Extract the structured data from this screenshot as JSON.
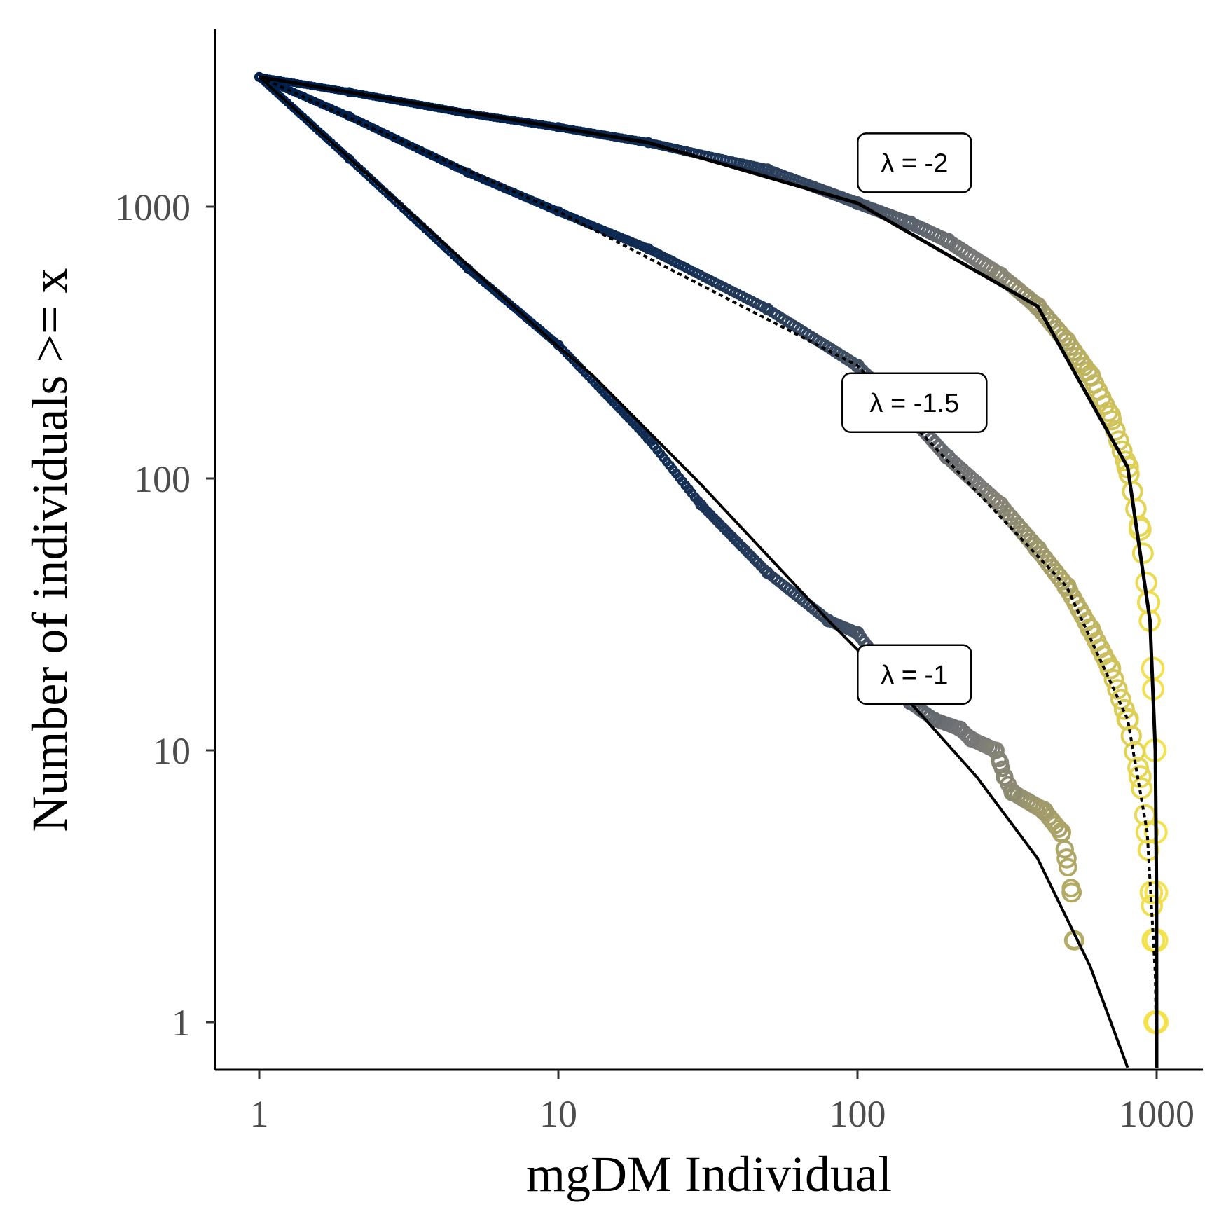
{
  "chart_data": {
    "type": "scatter",
    "xlabel": "mgDM Individual",
    "ylabel": "Number of individuals >= x",
    "x_scale": "log",
    "y_scale": "log",
    "xlim": [
      0.8,
      1370
    ],
    "ylim": [
      0.68,
      3700
    ],
    "grid": false,
    "x_ticks": [
      1,
      10,
      100,
      1000
    ],
    "x_tick_labels": [
      "1",
      "10",
      "100",
      "1000"
    ],
    "y_ticks": [
      1,
      10,
      100,
      1000
    ],
    "y_tick_labels": [
      "1",
      "10",
      "100",
      "1000"
    ],
    "color_scale": {
      "low": "#00204d",
      "mid": "#7c7b78",
      "high": "#f5e34d"
    },
    "series": [
      {
        "lambda": -2,
        "points": [
          [
            1,
            3000
          ],
          [
            2,
            2640
          ],
          [
            5,
            2200
          ],
          [
            10,
            1960
          ],
          [
            20,
            1720
          ],
          [
            50,
            1370
          ],
          [
            100,
            1030
          ],
          [
            150,
            870
          ],
          [
            200,
            750
          ],
          [
            300,
            560
          ],
          [
            400,
            430
          ],
          [
            500,
            320
          ],
          [
            600,
            240
          ],
          [
            700,
            170
          ],
          [
            800,
            110
          ],
          [
            880,
            65
          ],
          [
            940,
            35
          ],
          [
            970,
            20
          ],
          [
            985,
            10
          ],
          [
            993,
            5
          ],
          [
            997,
            3
          ],
          [
            998,
            2
          ],
          [
            1000,
            1
          ]
        ],
        "fit": [
          [
            1,
            3000
          ],
          [
            20,
            1720
          ],
          [
            100,
            1030
          ],
          [
            400,
            430
          ],
          [
            800,
            110
          ],
          [
            950,
            30
          ],
          [
            990,
            10
          ],
          [
            999,
            3
          ],
          [
            1000,
            0.68
          ]
        ]
      },
      {
        "lambda": -1.5,
        "points": [
          [
            1,
            3000
          ],
          [
            2,
            2150
          ],
          [
            5,
            1330
          ],
          [
            10,
            960
          ],
          [
            20,
            700
          ],
          [
            50,
            420
          ],
          [
            100,
            260
          ],
          [
            150,
            170
          ],
          [
            200,
            120
          ],
          [
            300,
            80
          ],
          [
            400,
            55
          ],
          [
            500,
            40
          ],
          [
            600,
            28
          ],
          [
            700,
            20
          ],
          [
            800,
            13
          ],
          [
            880,
            8
          ],
          [
            930,
            5
          ],
          [
            960,
            3
          ],
          [
            975,
            2
          ],
          [
            990,
            1
          ]
        ],
        "fit": [
          [
            1,
            3000
          ],
          [
            10,
            960
          ],
          [
            100,
            260
          ],
          [
            500,
            40
          ],
          [
            800,
            13
          ],
          [
            930,
            5
          ],
          [
            990,
            1.5
          ],
          [
            1000,
            0.68
          ]
        ]
      },
      {
        "lambda": -1,
        "points": [
          [
            1,
            3000
          ],
          [
            2,
            1500
          ],
          [
            5,
            590
          ],
          [
            10,
            310
          ],
          [
            20,
            140
          ],
          [
            30,
            80
          ],
          [
            50,
            45
          ],
          [
            80,
            30
          ],
          [
            100,
            27
          ],
          [
            150,
            15
          ],
          [
            180,
            13
          ],
          [
            220,
            12
          ],
          [
            240,
            11
          ],
          [
            290,
            10
          ],
          [
            300,
            9
          ],
          [
            310,
            8
          ],
          [
            330,
            7
          ],
          [
            420,
            6
          ],
          [
            480,
            5
          ],
          [
            500,
            4
          ],
          [
            520,
            3
          ],
          [
            530,
            2
          ]
        ],
        "fit": [
          [
            1,
            3000
          ],
          [
            10,
            305
          ],
          [
            13,
            240
          ],
          [
            30,
            95
          ],
          [
            80,
            30
          ],
          [
            150,
            15
          ],
          [
            250,
            8
          ],
          [
            400,
            4
          ],
          [
            600,
            1.6
          ],
          [
            800,
            0.68
          ]
        ]
      }
    ],
    "annotations": [
      {
        "text": "λ = -2",
        "x": 155,
        "y": 1450
      },
      {
        "text": "λ = -1.5",
        "x": 155,
        "y": 190
      },
      {
        "text": "λ = -1",
        "x": 155,
        "y": 19
      }
    ]
  }
}
